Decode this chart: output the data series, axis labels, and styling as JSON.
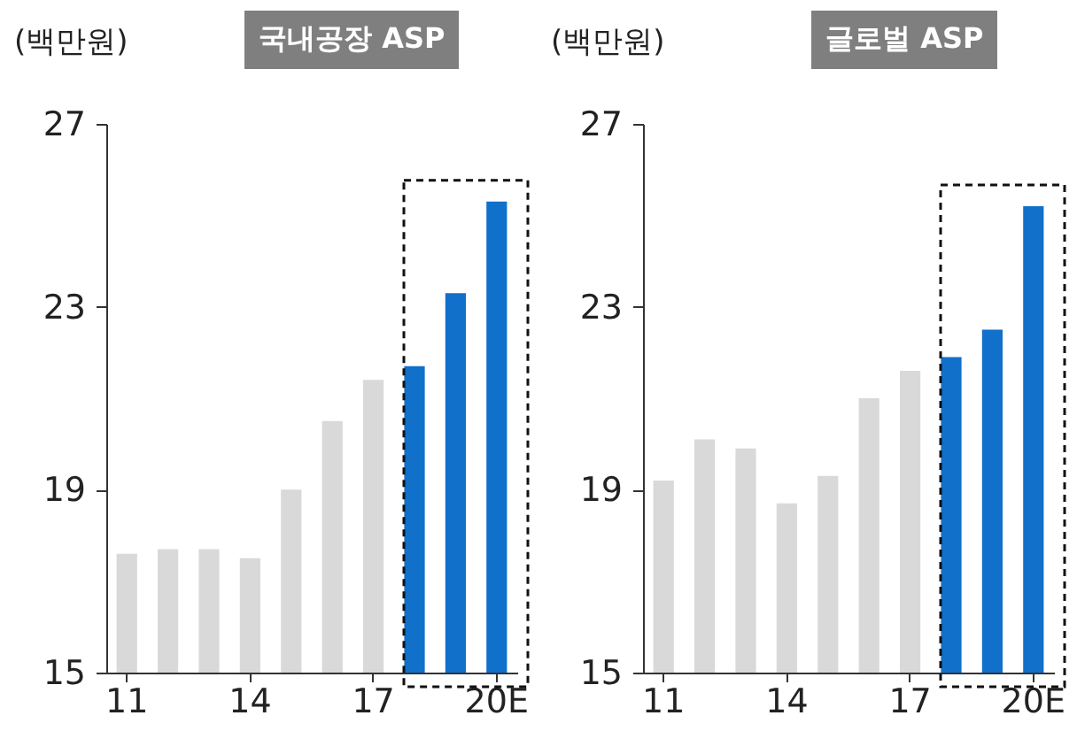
{
  "chart_data": [
    {
      "type": "bar",
      "title": "국내공장 ASP",
      "ylabel": "(백만원)",
      "categories": [
        "11",
        null,
        null,
        "14",
        null,
        null,
        "17",
        null,
        null,
        "20E"
      ],
      "values": [
        17.6,
        17.7,
        17.7,
        17.5,
        19.0,
        20.5,
        21.4,
        21.7,
        23.3,
        25.3
      ],
      "colors": [
        "#d9d9d9",
        "#d9d9d9",
        "#d9d9d9",
        "#d9d9d9",
        "#d9d9d9",
        "#d9d9d9",
        "#d9d9d9",
        "#1170c9",
        "#1170c9",
        "#1170c9"
      ],
      "ylim": [
        15,
        27
      ],
      "yticks": [
        15,
        19,
        23,
        27
      ],
      "grid": false
    },
    {
      "type": "bar",
      "title": "글로벌 ASP",
      "ylabel": "(백만원)",
      "categories": [
        "11",
        null,
        null,
        "14",
        null,
        null,
        "17",
        null,
        null,
        "20E"
      ],
      "values": [
        19.2,
        20.1,
        19.9,
        18.7,
        19.3,
        21.0,
        21.6,
        21.9,
        22.5,
        25.2
      ],
      "colors": [
        "#d9d9d9",
        "#d9d9d9",
        "#d9d9d9",
        "#d9d9d9",
        "#d9d9d9",
        "#d9d9d9",
        "#d9d9d9",
        "#1170c9",
        "#1170c9",
        "#1170c9"
      ],
      "ylim": [
        15,
        27
      ],
      "yticks": [
        15,
        19,
        23,
        27
      ],
      "grid": false
    }
  ]
}
